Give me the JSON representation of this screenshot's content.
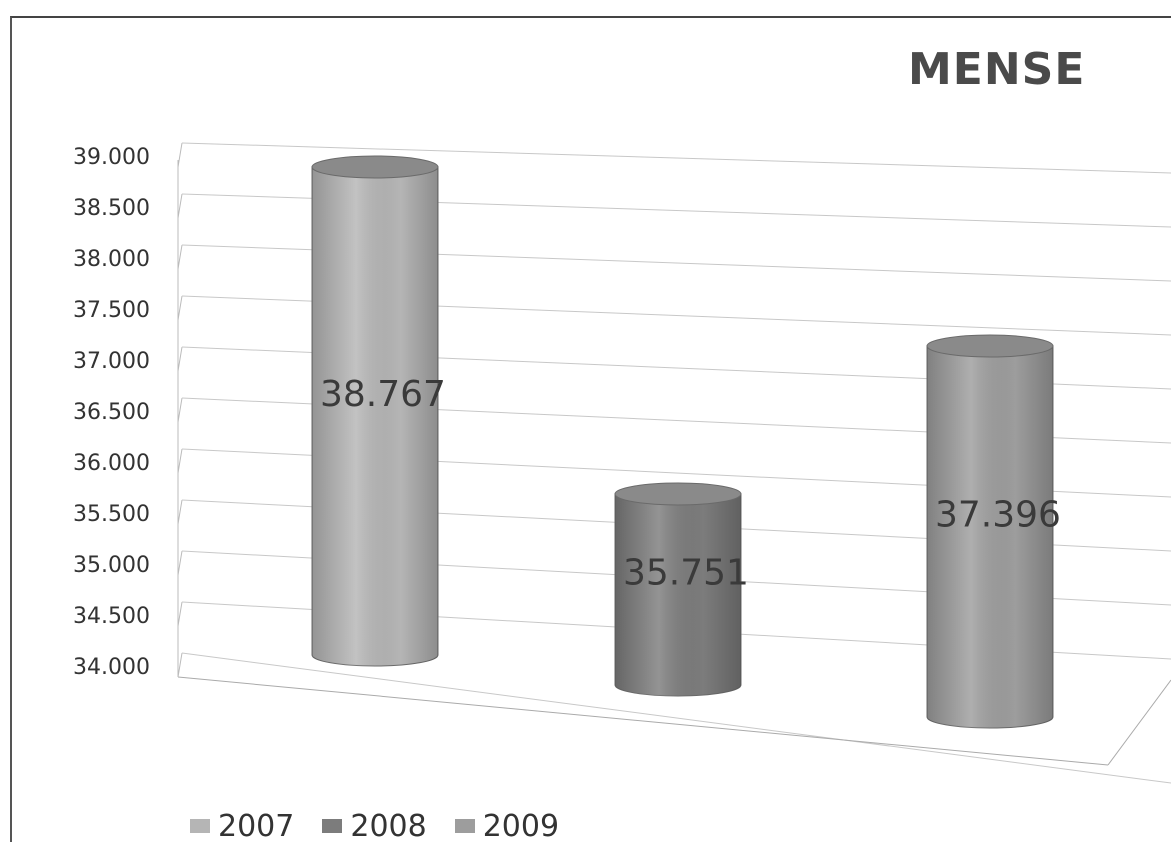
{
  "chart_data": {
    "type": "bar",
    "title": "MENSE",
    "categories": [
      "2007",
      "2008",
      "2009"
    ],
    "series": [
      {
        "name": "2007",
        "values": [
          38767,
          null,
          null
        ],
        "data_label": "38.767"
      },
      {
        "name": "2008",
        "values": [
          null,
          35751,
          null
        ],
        "data_label": "35.751"
      },
      {
        "name": "2009",
        "values": [
          null,
          null,
          37396
        ],
        "data_label": "37.396"
      }
    ],
    "ylim": [
      34000,
      39000
    ],
    "yticks": [
      "34.000",
      "34.500",
      "35.000",
      "35.500",
      "36.000",
      "36.500",
      "37.000",
      "37.500",
      "38.000",
      "38.500",
      "39.000"
    ],
    "grid": true,
    "legend": "bottom-left",
    "colors": {
      "2007": "#b5b5b5",
      "2008": "#7c7c7c",
      "2009": "#9d9d9d"
    }
  }
}
